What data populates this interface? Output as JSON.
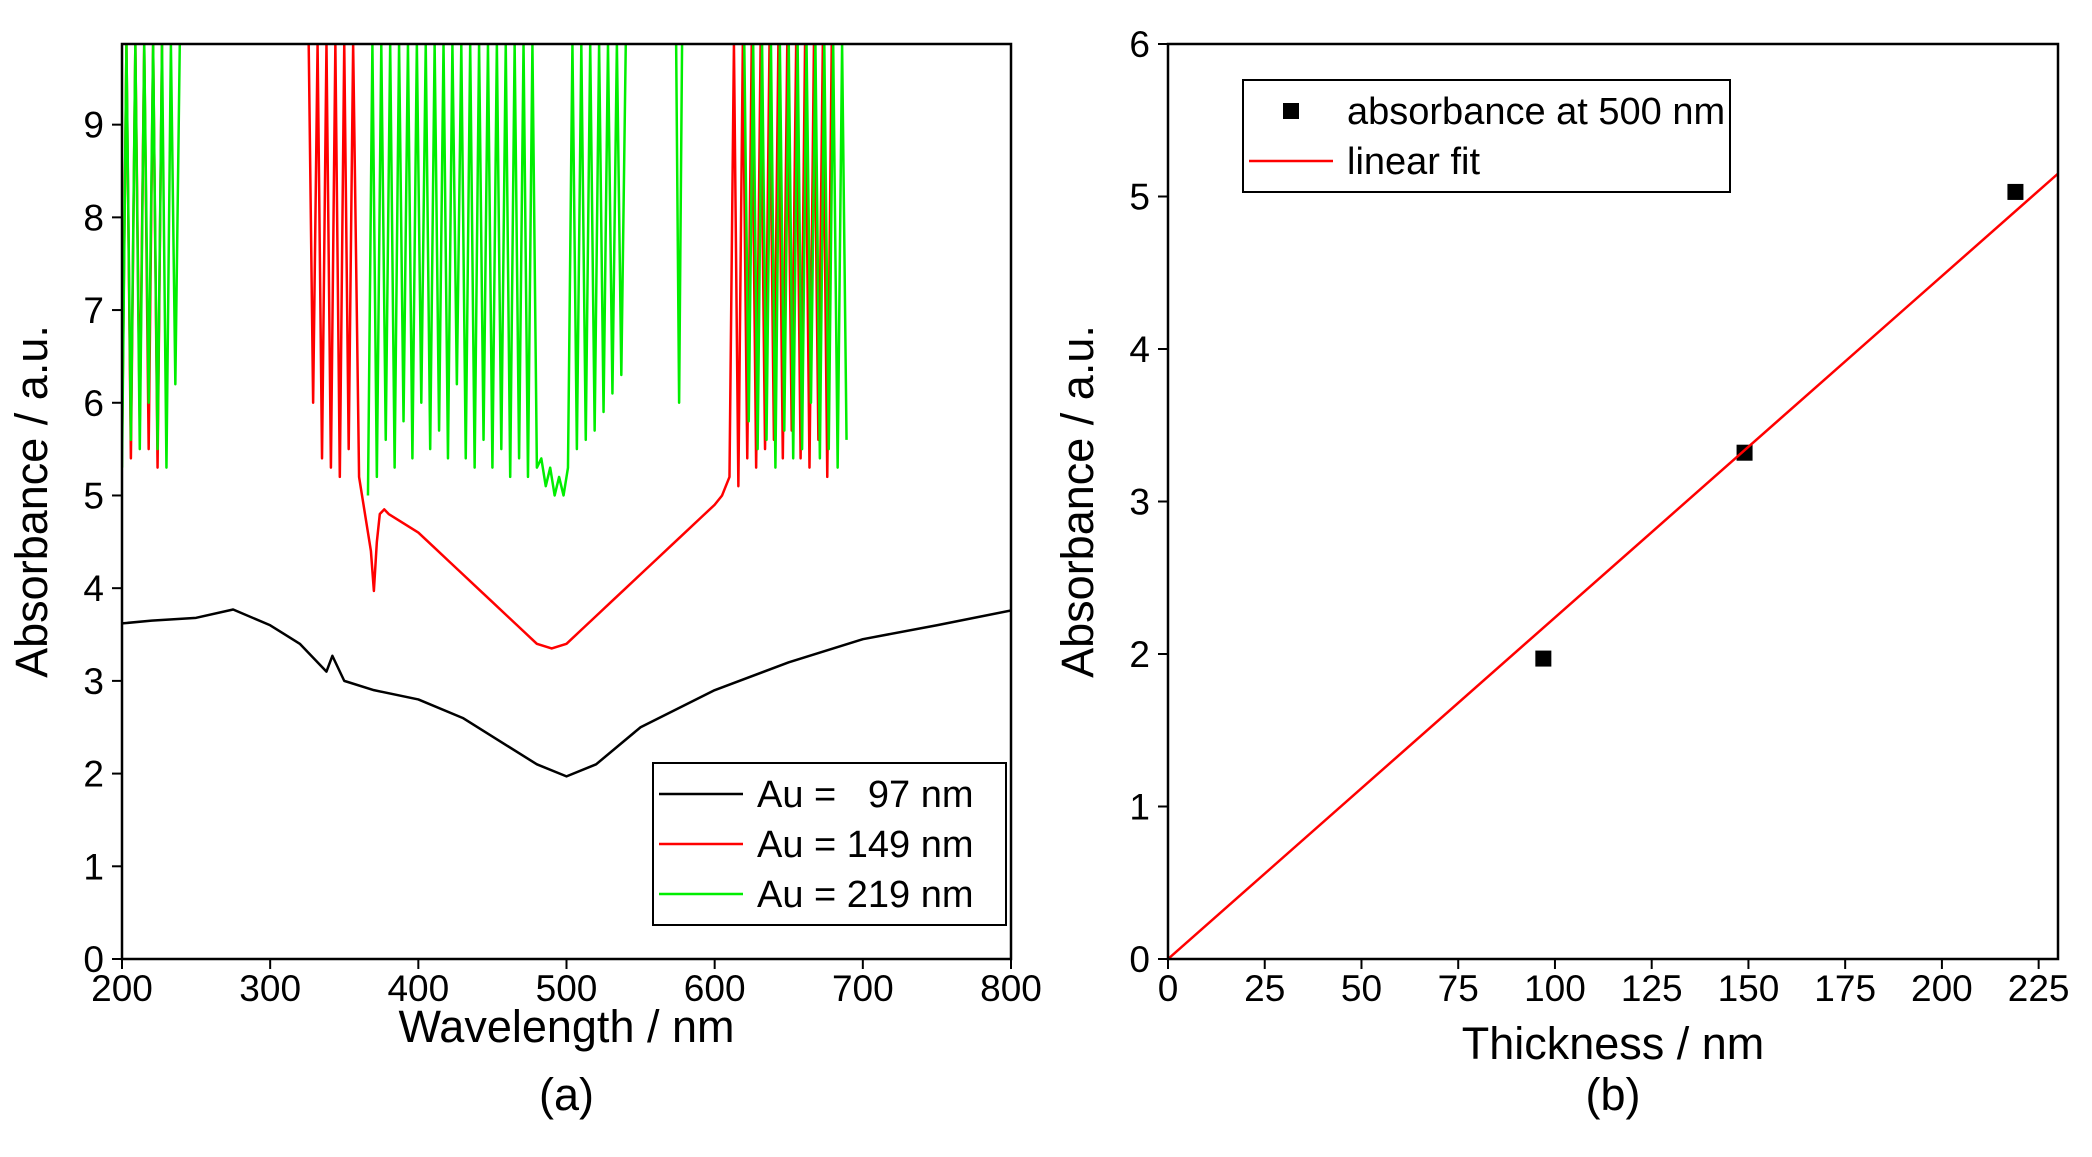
{
  "chart_data": [
    {
      "type": "line",
      "caption": "(a)",
      "xlabel": "Wavelength / nm",
      "ylabel": "Absorbance / a.u.",
      "xlim": [
        200,
        800
      ],
      "xticks": [
        200,
        300,
        400,
        500,
        600,
        700,
        800
      ],
      "ylim": [
        0,
        9.87
      ],
      "yticks": [
        0,
        1,
        2,
        3,
        4,
        5,
        6,
        7,
        8,
        9
      ],
      "legend": "lower right",
      "series": [
        {
          "name": "Au =   97 nm",
          "color": "#000000",
          "x": [
            200,
            220,
            250,
            275,
            300,
            320,
            338,
            342,
            350,
            370,
            400,
            430,
            460,
            480,
            500,
            520,
            550,
            600,
            650,
            700,
            750,
            800
          ],
          "values": [
            3.62,
            3.65,
            3.68,
            3.77,
            3.6,
            3.4,
            3.1,
            3.27,
            3.0,
            2.9,
            2.8,
            2.6,
            2.3,
            2.1,
            1.97,
            2.1,
            2.5,
            2.9,
            3.2,
            3.45,
            3.6,
            3.76
          ]
        },
        {
          "name": "Au = 149 nm",
          "color": "#ff0000",
          "x": [
            200,
            203,
            206,
            209,
            212,
            215,
            218,
            221,
            224,
            227,
            null,
            326,
            329,
            332,
            335,
            338,
            341,
            344,
            347,
            350,
            353,
            356,
            360,
            363,
            366,
            368,
            370,
            372,
            374,
            377,
            380,
            390,
            400,
            410,
            420,
            430,
            440,
            450,
            460,
            470,
            480,
            490,
            500,
            510,
            520,
            530,
            540,
            550,
            560,
            570,
            580,
            590,
            600,
            605,
            610,
            613,
            616,
            619,
            622,
            625,
            628,
            631,
            634,
            637,
            640,
            643,
            646,
            649,
            652,
            655,
            658,
            661,
            664,
            667,
            670,
            673,
            676,
            679
          ],
          "values": [
            5.5,
            9.87,
            5.4,
            9.87,
            5.8,
            9.87,
            5.5,
            9.87,
            5.3,
            9.87,
            null,
            9.87,
            6.0,
            9.87,
            5.4,
            9.87,
            5.3,
            9.87,
            5.2,
            9.87,
            5.5,
            9.87,
            5.2,
            4.9,
            4.6,
            4.4,
            3.97,
            4.5,
            4.8,
            4.85,
            4.8,
            4.7,
            4.6,
            4.45,
            4.3,
            4.15,
            4.0,
            3.85,
            3.7,
            3.55,
            3.4,
            3.35,
            3.4,
            3.55,
            3.7,
            3.85,
            4.0,
            4.15,
            4.3,
            4.45,
            4.6,
            4.75,
            4.9,
            5.0,
            5.2,
            9.87,
            5.1,
            9.87,
            5.4,
            9.87,
            5.3,
            9.87,
            5.5,
            9.87,
            5.6,
            9.87,
            5.4,
            9.87,
            5.7,
            9.87,
            5.4,
            9.87,
            5.3,
            9.87,
            5.6,
            9.87,
            5.2,
            9.87
          ]
        },
        {
          "name": "Au = 219 nm",
          "color": "#00ee00",
          "x": [
            200,
            203,
            206,
            209,
            212,
            215,
            218,
            221,
            224,
            227,
            230,
            233,
            236,
            239,
            null,
            366,
            369,
            372,
            375,
            378,
            381,
            384,
            387,
            390,
            393,
            396,
            399,
            402,
            405,
            408,
            411,
            414,
            417,
            420,
            423,
            426,
            429,
            432,
            435,
            438,
            441,
            444,
            447,
            450,
            453,
            456,
            459,
            462,
            465,
            468,
            471,
            474,
            477,
            480,
            483,
            486,
            489,
            492,
            495,
            498,
            501,
            504,
            507,
            510,
            513,
            516,
            519,
            522,
            525,
            528,
            531,
            534,
            537,
            540,
            null,
            574,
            576,
            578,
            null,
            620,
            623,
            626,
            629,
            632,
            635,
            638,
            641,
            644,
            647,
            650,
            653,
            656,
            659,
            662,
            665,
            668,
            671,
            674,
            677,
            680,
            683,
            686,
            689
          ],
          "values": [
            5.3,
            9.87,
            5.6,
            9.87,
            5.5,
            9.87,
            6.0,
            9.87,
            5.5,
            9.87,
            5.3,
            9.87,
            6.2,
            9.87,
            null,
            5.0,
            9.87,
            5.2,
            9.87,
            5.6,
            9.87,
            5.3,
            9.87,
            5.8,
            9.87,
            5.4,
            9.87,
            6.0,
            9.87,
            5.5,
            9.87,
            5.7,
            9.87,
            5.4,
            9.87,
            6.2,
            9.87,
            5.4,
            9.87,
            5.3,
            9.87,
            5.6,
            9.87,
            5.3,
            9.87,
            5.5,
            9.87,
            5.2,
            9.87,
            5.4,
            9.87,
            5.2,
            9.87,
            5.3,
            5.4,
            5.1,
            5.3,
            5.0,
            5.2,
            5.0,
            5.3,
            9.87,
            5.5,
            9.87,
            5.6,
            9.87,
            5.7,
            9.87,
            5.9,
            9.87,
            6.1,
            9.87,
            6.3,
            9.87,
            null,
            9.87,
            6.0,
            9.87,
            null,
            9.87,
            5.8,
            9.87,
            5.5,
            9.87,
            5.6,
            9.87,
            5.3,
            9.87,
            5.7,
            9.87,
            5.4,
            9.87,
            5.5,
            9.87,
            6.0,
            9.87,
            5.4,
            9.87,
            5.5,
            9.87,
            5.3,
            9.87,
            5.6
          ]
        }
      ]
    },
    {
      "type": "scatter",
      "caption": "(b)",
      "xlabel": "Thickness / nm",
      "ylabel": "Absorbance / a.u.",
      "xlim": [
        0,
        230
      ],
      "xticks": [
        0,
        25,
        50,
        75,
        100,
        125,
        150,
        175,
        200,
        225
      ],
      "ylim": [
        0,
        6
      ],
      "yticks": [
        0,
        1,
        2,
        3,
        4,
        5,
        6
      ],
      "legend": "upper left",
      "series": [
        {
          "name": "absorbance at 500 nm",
          "type": "scatter",
          "color": "#000000",
          "x": [
            97,
            149,
            219
          ],
          "values": [
            1.97,
            3.32,
            5.03
          ]
        },
        {
          "name": "linear fit",
          "type": "line",
          "color": "#ff0000",
          "x": [
            0,
            230
          ],
          "values": [
            0,
            5.15
          ]
        }
      ]
    }
  ]
}
